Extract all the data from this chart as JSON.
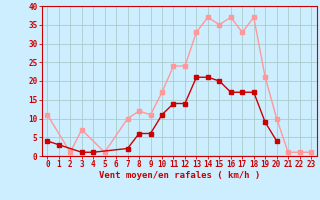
{
  "title": "",
  "xlabel": "Vent moyen/en rafales ( km/h )",
  "background_color": "#cceeff",
  "grid_color": "#aacccc",
  "hours": [
    0,
    1,
    2,
    3,
    4,
    5,
    6,
    7,
    8,
    9,
    10,
    11,
    12,
    13,
    14,
    15,
    16,
    17,
    18,
    19,
    20,
    21,
    22,
    23
  ],
  "wind_avg": [
    4,
    3,
    null,
    1,
    1,
    null,
    null,
    2,
    6,
    6,
    11,
    14,
    14,
    21,
    21,
    20,
    17,
    17,
    17,
    9,
    4,
    null,
    null,
    null
  ],
  "wind_gust": [
    11,
    null,
    1,
    7,
    null,
    1,
    null,
    10,
    12,
    11,
    17,
    24,
    24,
    33,
    37,
    35,
    37,
    33,
    37,
    21,
    10,
    1,
    1,
    1
  ],
  "ylim": [
    0,
    40
  ],
  "yticks": [
    0,
    5,
    10,
    15,
    20,
    25,
    30,
    35,
    40
  ],
  "avg_color": "#cc0000",
  "gust_color": "#ff9999",
  "marker_size": 2.5,
  "line_width": 1.0,
  "tick_fontsize": 5.5,
  "xlabel_fontsize": 6.5
}
